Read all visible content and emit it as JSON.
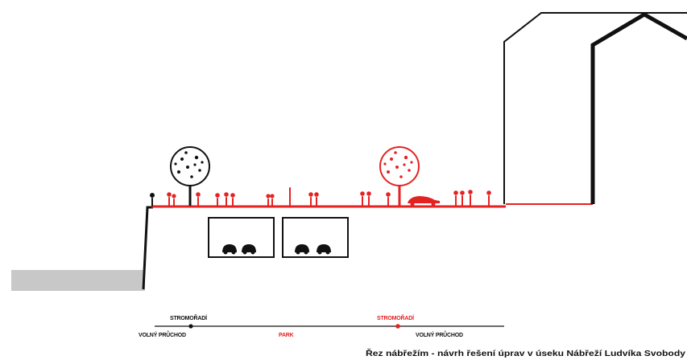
{
  "labels": {
    "stromorade_left": "STROMOŘADÍ",
    "stromorade_right": "STROMOŘADÍ",
    "volny_pruchod_left": "VOLNÝ PRŮCHOD",
    "park": "PARK",
    "volny_pruchod_right": "VOLNÝ PRŮCHOD"
  },
  "caption": "Řez nábřežím - návrh řešení úprav v úseku Nábřeží Ludvíka Svobody",
  "colors": {
    "accent": "#e52222",
    "ink": "#111111",
    "water": "#c8c8c8"
  }
}
